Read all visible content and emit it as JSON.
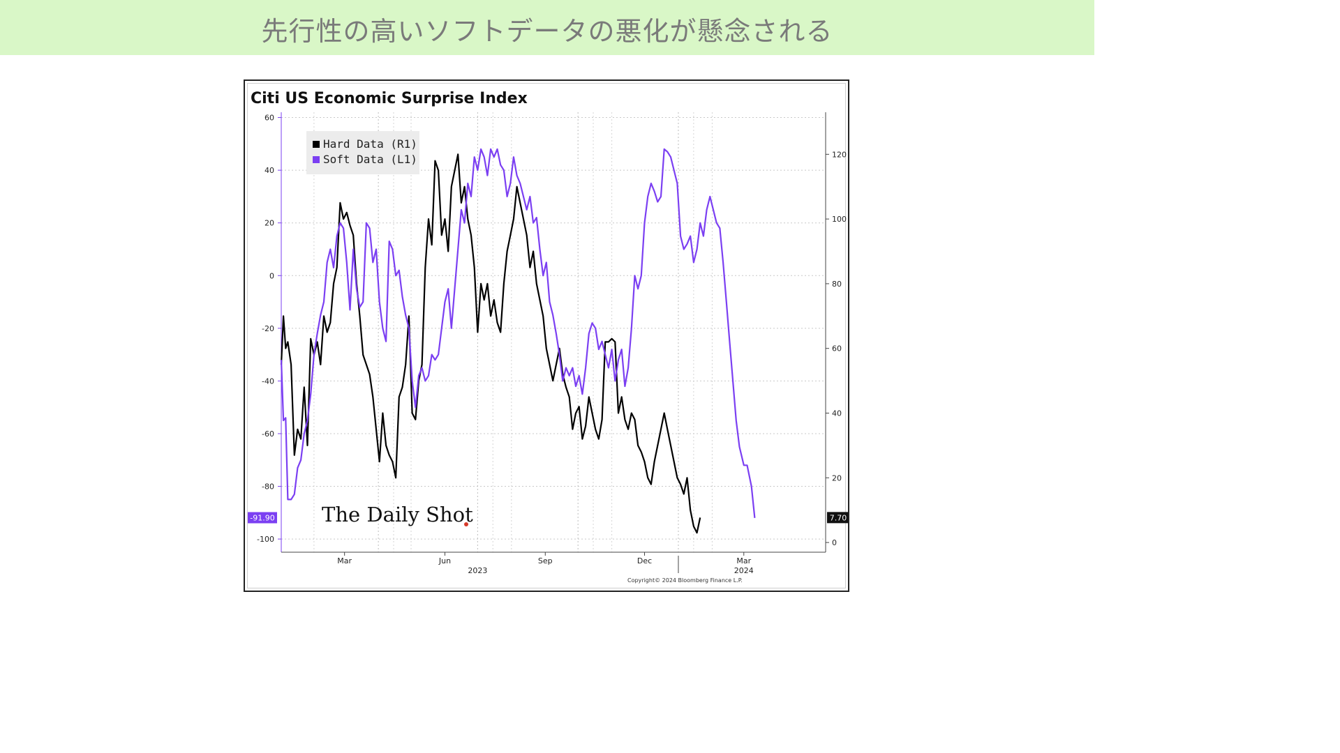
{
  "banner": {
    "title": "先行性の高いソフトデータの悪化が懸念される"
  },
  "chart_data": {
    "type": "line",
    "title": "Citi US Economic Surprise Index",
    "legend": [
      {
        "label": "Hard Data (R1)",
        "color": "#000000"
      },
      {
        "label": "Soft Data (L1)",
        "color": "#7b3ff2"
      }
    ],
    "legend_position": "top-left",
    "grid": true,
    "x_ticks": [
      "Mar",
      "Jun",
      "Sep",
      "Dec",
      "Mar"
    ],
    "x_year_labels": [
      "2023",
      "2024"
    ],
    "left_axis": {
      "ticks": [
        60,
        40,
        20,
        0,
        -20,
        -40,
        -60,
        -80,
        -100
      ],
      "range": [
        -105,
        62
      ]
    },
    "right_axis": {
      "ticks": [
        120,
        100,
        80,
        60,
        40,
        20,
        0
      ],
      "range": [
        -3,
        133
      ]
    },
    "last_values": {
      "soft": "-91.90",
      "hard": "7.70"
    },
    "x_range": [
      "2023-01-02",
      "2024-05-15"
    ],
    "series": [
      {
        "name": "Soft Data (L1)",
        "axis": "left",
        "color": "#7b3ff2",
        "points": [
          [
            "2023-01-02",
            -32
          ],
          [
            "2023-01-04",
            -55
          ],
          [
            "2023-01-06",
            -54
          ],
          [
            "2023-01-08",
            -85
          ],
          [
            "2023-01-11",
            -85
          ],
          [
            "2023-01-14",
            -83
          ],
          [
            "2023-01-17",
            -73
          ],
          [
            "2023-01-20",
            -70
          ],
          [
            "2023-01-23",
            -60
          ],
          [
            "2023-01-26",
            -55
          ],
          [
            "2023-01-29",
            -45
          ],
          [
            "2023-02-01",
            -30
          ],
          [
            "2023-02-04",
            -22
          ],
          [
            "2023-02-07",
            -15
          ],
          [
            "2023-02-10",
            -10
          ],
          [
            "2023-02-13",
            5
          ],
          [
            "2023-02-16",
            10
          ],
          [
            "2023-02-19",
            3
          ],
          [
            "2023-02-22",
            15
          ],
          [
            "2023-02-25",
            20
          ],
          [
            "2023-02-28",
            18
          ],
          [
            "2023-03-03",
            5
          ],
          [
            "2023-03-06",
            -13
          ],
          [
            "2023-03-09",
            10
          ],
          [
            "2023-03-12",
            -5
          ],
          [
            "2023-03-15",
            -12
          ],
          [
            "2023-03-18",
            -10
          ],
          [
            "2023-03-21",
            20
          ],
          [
            "2023-03-24",
            18
          ],
          [
            "2023-03-27",
            5
          ],
          [
            "2023-03-30",
            10
          ],
          [
            "2023-04-02",
            -10
          ],
          [
            "2023-04-05",
            -20
          ],
          [
            "2023-04-08",
            -25
          ],
          [
            "2023-04-11",
            13
          ],
          [
            "2023-04-14",
            10
          ],
          [
            "2023-04-17",
            0
          ],
          [
            "2023-04-20",
            2
          ],
          [
            "2023-04-23",
            -8
          ],
          [
            "2023-04-26",
            -15
          ],
          [
            "2023-04-29",
            -20
          ],
          [
            "2023-05-02",
            -40
          ],
          [
            "2023-05-05",
            -50
          ],
          [
            "2023-05-08",
            -38
          ],
          [
            "2023-05-11",
            -35
          ],
          [
            "2023-05-14",
            -40
          ],
          [
            "2023-05-17",
            -38
          ],
          [
            "2023-05-20",
            -30
          ],
          [
            "2023-05-23",
            -32
          ],
          [
            "2023-05-26",
            -30
          ],
          [
            "2023-05-29",
            -20
          ],
          [
            "2023-06-01",
            -10
          ],
          [
            "2023-06-04",
            -5
          ],
          [
            "2023-06-07",
            -20
          ],
          [
            "2023-06-10",
            -5
          ],
          [
            "2023-06-13",
            10
          ],
          [
            "2023-06-16",
            25
          ],
          [
            "2023-06-19",
            20
          ],
          [
            "2023-06-22",
            35
          ],
          [
            "2023-06-25",
            30
          ],
          [
            "2023-06-28",
            45
          ],
          [
            "2023-07-01",
            40
          ],
          [
            "2023-07-04",
            48
          ],
          [
            "2023-07-07",
            45
          ],
          [
            "2023-07-10",
            38
          ],
          [
            "2023-07-13",
            48
          ],
          [
            "2023-07-16",
            45
          ],
          [
            "2023-07-19",
            48
          ],
          [
            "2023-07-22",
            42
          ],
          [
            "2023-07-25",
            40
          ],
          [
            "2023-07-28",
            30
          ],
          [
            "2023-07-31",
            35
          ],
          [
            "2023-08-03",
            45
          ],
          [
            "2023-08-06",
            38
          ],
          [
            "2023-08-09",
            35
          ],
          [
            "2023-08-12",
            30
          ],
          [
            "2023-08-15",
            25
          ],
          [
            "2023-08-18",
            30
          ],
          [
            "2023-08-21",
            20
          ],
          [
            "2023-08-24",
            22
          ],
          [
            "2023-08-27",
            10
          ],
          [
            "2023-08-30",
            0
          ],
          [
            "2023-09-02",
            5
          ],
          [
            "2023-09-05",
            -10
          ],
          [
            "2023-09-08",
            -15
          ],
          [
            "2023-09-11",
            -22
          ],
          [
            "2023-09-14",
            -30
          ],
          [
            "2023-09-17",
            -40
          ],
          [
            "2023-09-20",
            -35
          ],
          [
            "2023-09-23",
            -38
          ],
          [
            "2023-09-26",
            -35
          ],
          [
            "2023-09-29",
            -42
          ],
          [
            "2023-10-02",
            -38
          ],
          [
            "2023-10-05",
            -45
          ],
          [
            "2023-10-08",
            -35
          ],
          [
            "2023-10-11",
            -22
          ],
          [
            "2023-10-14",
            -18
          ],
          [
            "2023-10-17",
            -20
          ],
          [
            "2023-10-20",
            -28
          ],
          [
            "2023-10-23",
            -25
          ],
          [
            "2023-10-26",
            -30
          ],
          [
            "2023-10-29",
            -35
          ],
          [
            "2023-11-01",
            -28
          ],
          [
            "2023-11-04",
            -40
          ],
          [
            "2023-11-07",
            -32
          ],
          [
            "2023-11-10",
            -28
          ],
          [
            "2023-11-13",
            -42
          ],
          [
            "2023-11-16",
            -35
          ],
          [
            "2023-11-19",
            -20
          ],
          [
            "2023-11-22",
            0
          ],
          [
            "2023-11-25",
            -5
          ],
          [
            "2023-11-28",
            0
          ],
          [
            "2023-12-01",
            20
          ],
          [
            "2023-12-04",
            30
          ],
          [
            "2023-12-07",
            35
          ],
          [
            "2023-12-10",
            32
          ],
          [
            "2023-12-13",
            28
          ],
          [
            "2023-12-16",
            30
          ],
          [
            "2023-12-19",
            48
          ],
          [
            "2023-12-22",
            47
          ],
          [
            "2023-12-25",
            45
          ],
          [
            "2023-12-28",
            40
          ],
          [
            "2023-12-31",
            35
          ],
          [
            "2024-01-03",
            15
          ],
          [
            "2024-01-06",
            10
          ],
          [
            "2024-01-09",
            12
          ],
          [
            "2024-01-12",
            15
          ],
          [
            "2024-01-15",
            5
          ],
          [
            "2024-01-18",
            10
          ],
          [
            "2024-01-21",
            20
          ],
          [
            "2024-01-24",
            15
          ],
          [
            "2024-01-27",
            25
          ],
          [
            "2024-01-30",
            30
          ],
          [
            "2024-02-02",
            25
          ],
          [
            "2024-02-05",
            20
          ],
          [
            "2024-02-08",
            18
          ],
          [
            "2024-02-11",
            5
          ],
          [
            "2024-02-14",
            -10
          ],
          [
            "2024-02-17",
            -25
          ],
          [
            "2024-02-20",
            -40
          ],
          [
            "2024-02-23",
            -55
          ],
          [
            "2024-02-26",
            -65
          ],
          [
            "2024-03-01",
            -72
          ],
          [
            "2024-03-04",
            -72
          ],
          [
            "2024-03-08",
            -80
          ],
          [
            "2024-03-11",
            -92
          ]
        ]
      },
      {
        "name": "Hard Data (R1)",
        "axis": "right",
        "color": "#000000",
        "points": [
          [
            "2023-01-02",
            55
          ],
          [
            "2023-01-04",
            70
          ],
          [
            "2023-01-06",
            60
          ],
          [
            "2023-01-08",
            62
          ],
          [
            "2023-01-11",
            55
          ],
          [
            "2023-01-14",
            27
          ],
          [
            "2023-01-17",
            35
          ],
          [
            "2023-01-20",
            32
          ],
          [
            "2023-01-23",
            48
          ],
          [
            "2023-01-26",
            30
          ],
          [
            "2023-01-29",
            63
          ],
          [
            "2023-02-01",
            58
          ],
          [
            "2023-02-04",
            62
          ],
          [
            "2023-02-07",
            55
          ],
          [
            "2023-02-10",
            70
          ],
          [
            "2023-02-13",
            65
          ],
          [
            "2023-02-16",
            68
          ],
          [
            "2023-02-19",
            80
          ],
          [
            "2023-02-22",
            85
          ],
          [
            "2023-02-25",
            105
          ],
          [
            "2023-02-28",
            100
          ],
          [
            "2023-03-03",
            102
          ],
          [
            "2023-03-06",
            98
          ],
          [
            "2023-03-09",
            95
          ],
          [
            "2023-03-12",
            80
          ],
          [
            "2023-03-15",
            70
          ],
          [
            "2023-03-18",
            58
          ],
          [
            "2023-03-21",
            55
          ],
          [
            "2023-03-24",
            52
          ],
          [
            "2023-03-27",
            45
          ],
          [
            "2023-03-30",
            35
          ],
          [
            "2023-04-02",
            25
          ],
          [
            "2023-04-05",
            40
          ],
          [
            "2023-04-08",
            30
          ],
          [
            "2023-04-11",
            27
          ],
          [
            "2023-04-14",
            25
          ],
          [
            "2023-04-17",
            20
          ],
          [
            "2023-04-20",
            45
          ],
          [
            "2023-04-23",
            48
          ],
          [
            "2023-04-26",
            55
          ],
          [
            "2023-04-29",
            70
          ],
          [
            "2023-05-02",
            40
          ],
          [
            "2023-05-05",
            38
          ],
          [
            "2023-05-08",
            50
          ],
          [
            "2023-05-11",
            55
          ],
          [
            "2023-05-14",
            85
          ],
          [
            "2023-05-17",
            100
          ],
          [
            "2023-05-20",
            92
          ],
          [
            "2023-05-23",
            118
          ],
          [
            "2023-05-26",
            115
          ],
          [
            "2023-05-29",
            95
          ],
          [
            "2023-06-01",
            100
          ],
          [
            "2023-06-04",
            90
          ],
          [
            "2023-06-07",
            110
          ],
          [
            "2023-06-10",
            115
          ],
          [
            "2023-06-13",
            120
          ],
          [
            "2023-06-16",
            105
          ],
          [
            "2023-06-19",
            110
          ],
          [
            "2023-06-22",
            100
          ],
          [
            "2023-06-25",
            95
          ],
          [
            "2023-06-28",
            85
          ],
          [
            "2023-07-01",
            65
          ],
          [
            "2023-07-04",
            80
          ],
          [
            "2023-07-07",
            75
          ],
          [
            "2023-07-10",
            80
          ],
          [
            "2023-07-13",
            70
          ],
          [
            "2023-07-16",
            75
          ],
          [
            "2023-07-19",
            68
          ],
          [
            "2023-07-22",
            65
          ],
          [
            "2023-07-25",
            80
          ],
          [
            "2023-07-28",
            90
          ],
          [
            "2023-07-31",
            95
          ],
          [
            "2023-08-03",
            100
          ],
          [
            "2023-08-06",
            110
          ],
          [
            "2023-08-09",
            105
          ],
          [
            "2023-08-12",
            100
          ],
          [
            "2023-08-15",
            95
          ],
          [
            "2023-08-18",
            85
          ],
          [
            "2023-08-21",
            90
          ],
          [
            "2023-08-24",
            80
          ],
          [
            "2023-08-27",
            75
          ],
          [
            "2023-08-30",
            70
          ],
          [
            "2023-09-02",
            60
          ],
          [
            "2023-09-05",
            55
          ],
          [
            "2023-09-08",
            50
          ],
          [
            "2023-09-11",
            55
          ],
          [
            "2023-09-14",
            60
          ],
          [
            "2023-09-17",
            52
          ],
          [
            "2023-09-20",
            48
          ],
          [
            "2023-09-23",
            45
          ],
          [
            "2023-09-26",
            35
          ],
          [
            "2023-09-29",
            40
          ],
          [
            "2023-10-02",
            42
          ],
          [
            "2023-10-05",
            32
          ],
          [
            "2023-10-08",
            36
          ],
          [
            "2023-10-11",
            45
          ],
          [
            "2023-10-14",
            40
          ],
          [
            "2023-10-17",
            35
          ],
          [
            "2023-10-20",
            32
          ],
          [
            "2023-10-23",
            38
          ],
          [
            "2023-10-26",
            62
          ],
          [
            "2023-10-29",
            62
          ],
          [
            "2023-11-01",
            63
          ],
          [
            "2023-11-04",
            62
          ],
          [
            "2023-11-07",
            40
          ],
          [
            "2023-11-10",
            45
          ],
          [
            "2023-11-13",
            38
          ],
          [
            "2023-11-16",
            35
          ],
          [
            "2023-11-19",
            40
          ],
          [
            "2023-11-22",
            38
          ],
          [
            "2023-11-25",
            30
          ],
          [
            "2023-11-28",
            28
          ],
          [
            "2023-12-01",
            25
          ],
          [
            "2023-12-04",
            20
          ],
          [
            "2023-12-07",
            18
          ],
          [
            "2023-12-10",
            25
          ],
          [
            "2023-12-13",
            30
          ],
          [
            "2023-12-16",
            35
          ],
          [
            "2023-12-19",
            40
          ],
          [
            "2023-12-22",
            35
          ],
          [
            "2023-12-25",
            30
          ],
          [
            "2023-12-28",
            25
          ],
          [
            "2023-12-31",
            20
          ],
          [
            "2024-01-03",
            18
          ],
          [
            "2024-01-06",
            15
          ],
          [
            "2024-01-09",
            20
          ],
          [
            "2024-01-12",
            10
          ],
          [
            "2024-01-15",
            5
          ],
          [
            "2024-01-18",
            3
          ],
          [
            "2024-01-21",
            7.7
          ]
        ]
      }
    ]
  },
  "watermark": "The Daily Shot",
  "copyright": "Copyright© 2024 Bloomberg Finance L.P."
}
